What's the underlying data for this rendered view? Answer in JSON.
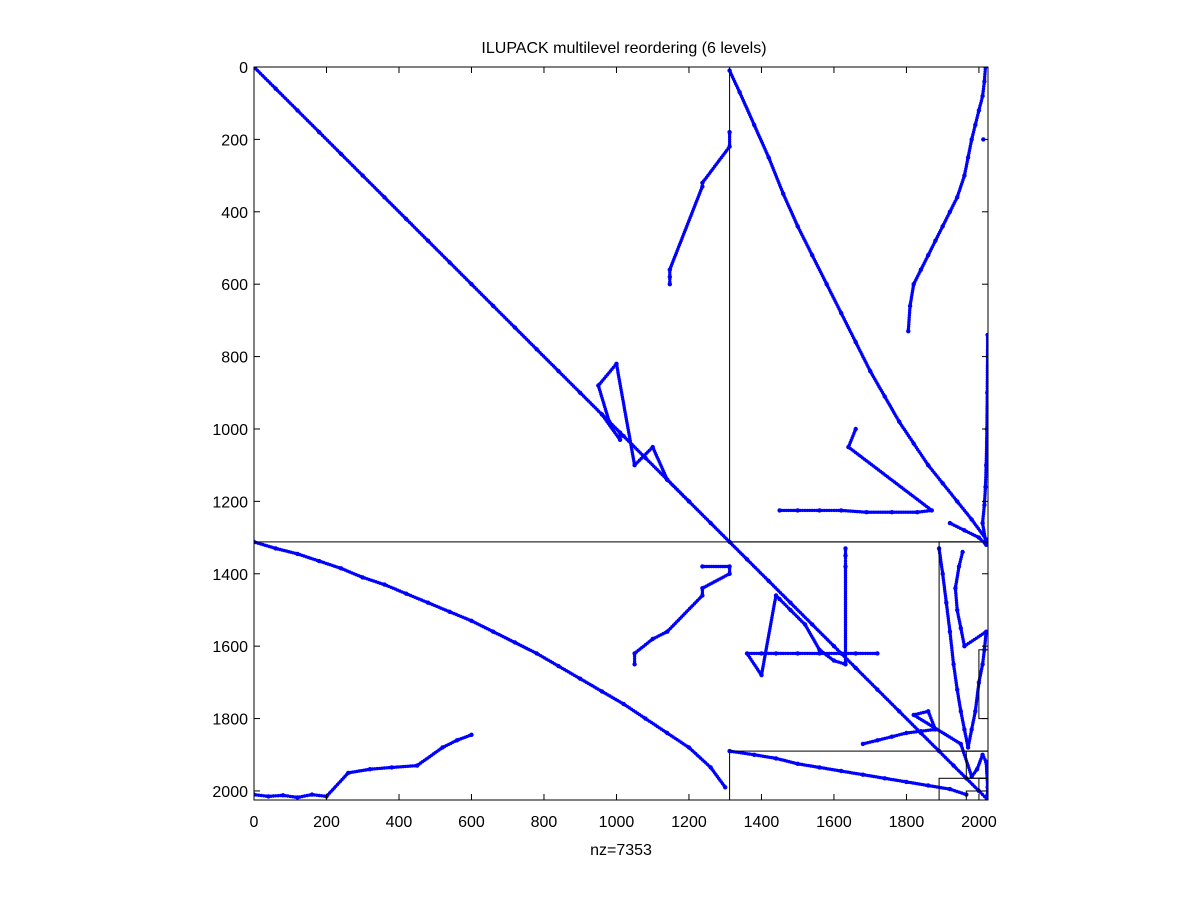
{
  "chart_data": {
    "type": "scatter",
    "title": "ILUPACK multilevel reordering (6 levels)",
    "xlabel": "nz=7353",
    "ylabel": "",
    "xlim": [
      0,
      2025
    ],
    "ylim": [
      2025,
      0
    ],
    "y_axis_reversed": true,
    "grid": false,
    "legend": "none",
    "x_ticks": [
      "0",
      "200",
      "400",
      "600",
      "800",
      "1000",
      "1200",
      "1400",
      "1600",
      "1800",
      "2000"
    ],
    "y_ticks": [
      "0",
      "200",
      "400",
      "600",
      "800",
      "1000",
      "1200",
      "1400",
      "1600",
      "1800",
      "2000"
    ],
    "marker_color": "#0000ff",
    "nonzeros": 7353,
    "level_boundaries": [
      1312,
      1890,
      1965,
      2000
    ],
    "block_rectangles": [
      {
        "x0": 1312,
        "x1": 2025,
        "y0": 0,
        "y1": 1312
      },
      {
        "x0": 0,
        "x1": 2025,
        "y0": 1312,
        "y1": 2025
      },
      {
        "x0": 1890,
        "x1": 2025,
        "y0": 1312,
        "y1": 1890
      },
      {
        "x0": 1312,
        "x1": 2025,
        "y0": 1890,
        "y1": 2025
      },
      {
        "x0": 1965,
        "x1": 2025,
        "y0": 1890,
        "y1": 1965
      },
      {
        "x0": 1890,
        "x1": 2025,
        "y0": 1965,
        "y1": 2025
      },
      {
        "x0": 2000,
        "x1": 2025,
        "y0": 1965,
        "y1": 2000
      },
      {
        "x0": 1965,
        "x1": 2025,
        "y0": 2000,
        "y1": 2025
      },
      {
        "x0": 2000,
        "x1": 2025,
        "y0": 1610,
        "y1": 1800
      }
    ],
    "series": [
      {
        "points": [
          [
            0,
            0
          ],
          [
            60,
            60
          ],
          [
            120,
            120
          ],
          [
            180,
            180
          ],
          [
            240,
            240
          ],
          [
            300,
            300
          ],
          [
            360,
            360
          ],
          [
            420,
            420
          ],
          [
            480,
            480
          ],
          [
            540,
            540
          ],
          [
            600,
            600
          ],
          [
            660,
            660
          ],
          [
            720,
            720
          ],
          [
            780,
            780
          ],
          [
            840,
            840
          ],
          [
            900,
            900
          ],
          [
            960,
            960
          ],
          [
            1020,
            1020
          ],
          [
            1080,
            1080
          ],
          [
            1140,
            1140
          ],
          [
            1200,
            1200
          ],
          [
            1260,
            1260
          ],
          [
            1312,
            1312
          ],
          [
            1360,
            1360
          ],
          [
            1420,
            1420
          ],
          [
            1480,
            1480
          ],
          [
            1540,
            1540
          ],
          [
            1600,
            1600
          ],
          [
            1660,
            1660
          ],
          [
            1720,
            1720
          ],
          [
            1780,
            1780
          ],
          [
            1840,
            1840
          ],
          [
            1890,
            1890
          ],
          [
            1930,
            1930
          ],
          [
            1965,
            1965
          ],
          [
            2000,
            2000
          ],
          [
            2025,
            2025
          ]
        ]
      },
      {
        "points": [
          [
            1312,
            10
          ],
          [
            1340,
            70
          ],
          [
            1380,
            160
          ],
          [
            1420,
            250
          ],
          [
            1460,
            350
          ],
          [
            1500,
            440
          ],
          [
            1540,
            520
          ],
          [
            1580,
            600
          ],
          [
            1620,
            680
          ],
          [
            1660,
            760
          ],
          [
            1700,
            840
          ],
          [
            1740,
            910
          ],
          [
            1780,
            980
          ],
          [
            1820,
            1040
          ],
          [
            1860,
            1100
          ],
          [
            1900,
            1150
          ],
          [
            1940,
            1200
          ],
          [
            1980,
            1250
          ],
          [
            2020,
            1305
          ]
        ]
      },
      {
        "points": [
          [
            1805,
            730
          ],
          [
            1810,
            660
          ],
          [
            1820,
            600
          ],
          [
            1840,
            560
          ],
          [
            1860,
            520
          ],
          [
            1880,
            480
          ],
          [
            1900,
            440
          ],
          [
            1920,
            400
          ],
          [
            1940,
            360
          ],
          [
            1960,
            300
          ],
          [
            1970,
            250
          ],
          [
            1980,
            200
          ],
          [
            1990,
            160
          ],
          [
            2000,
            120
          ],
          [
            2010,
            80
          ],
          [
            2015,
            40
          ],
          [
            2018,
            0
          ]
        ]
      },
      {
        "points": [
          [
            0,
            1312
          ],
          [
            60,
            1330
          ],
          [
            120,
            1345
          ],
          [
            180,
            1365
          ],
          [
            240,
            1385
          ],
          [
            300,
            1410
          ],
          [
            360,
            1430
          ],
          [
            420,
            1455
          ],
          [
            480,
            1480
          ],
          [
            540,
            1505
          ],
          [
            600,
            1530
          ],
          [
            660,
            1560
          ],
          [
            720,
            1590
          ],
          [
            780,
            1620
          ],
          [
            840,
            1655
          ],
          [
            900,
            1690
          ],
          [
            960,
            1725
          ],
          [
            1020,
            1760
          ],
          [
            1080,
            1800
          ],
          [
            1140,
            1840
          ],
          [
            1200,
            1880
          ],
          [
            1260,
            1935
          ],
          [
            1300,
            1990
          ]
        ]
      },
      {
        "points": [
          [
            1312,
            1890
          ],
          [
            1380,
            1900
          ],
          [
            1440,
            1910
          ],
          [
            1500,
            1925
          ],
          [
            1560,
            1935
          ],
          [
            1620,
            1945
          ],
          [
            1680,
            1955
          ],
          [
            1740,
            1965
          ],
          [
            1800,
            1975
          ],
          [
            1860,
            1985
          ],
          [
            1920,
            1995
          ],
          [
            1965,
            2010
          ]
        ]
      },
      {
        "points": [
          [
            0,
            2010
          ],
          [
            40,
            2015
          ],
          [
            80,
            2012
          ],
          [
            120,
            2018
          ],
          [
            160,
            2010
          ],
          [
            200,
            2015
          ],
          [
            260,
            1950
          ],
          [
            320,
            1940
          ],
          [
            380,
            1935
          ],
          [
            450,
            1930
          ],
          [
            520,
            1880
          ],
          [
            560,
            1860
          ],
          [
            600,
            1845
          ]
        ]
      },
      {
        "points": [
          [
            1312,
            180
          ],
          [
            1312,
            220
          ],
          [
            1237,
            320
          ],
          [
            1237,
            330
          ],
          [
            1147,
            560
          ],
          [
            1147,
            580
          ],
          [
            1147,
            600
          ],
          [
            1237,
            1380
          ],
          [
            1312,
            1380
          ],
          [
            1312,
            1400
          ],
          [
            1237,
            1440
          ],
          [
            1237,
            1460
          ],
          [
            1140,
            1560
          ],
          [
            1100,
            1580
          ],
          [
            1050,
            1620
          ],
          [
            1050,
            1650
          ],
          [
            1010,
            1010
          ],
          [
            1010,
            1030
          ],
          [
            960,
            960
          ],
          [
            980,
            980
          ],
          [
            950,
            880
          ],
          [
            1000,
            820
          ],
          [
            1050,
            1100
          ],
          [
            1100,
            1050
          ],
          [
            1140,
            1140
          ],
          [
            1200,
            1200
          ]
        ]
      },
      {
        "points": [
          [
            1632,
            1330
          ],
          [
            1632,
            1350
          ],
          [
            1632,
            1380
          ],
          [
            1632,
            1650
          ],
          [
            1600,
            1640
          ],
          [
            1560,
            1610
          ],
          [
            1520,
            1540
          ],
          [
            1480,
            1500
          ],
          [
            1450,
            1470
          ],
          [
            1440,
            1460
          ],
          [
            1400,
            1680
          ],
          [
            1360,
            1620
          ],
          [
            1400,
            1620
          ],
          [
            1440,
            1620
          ],
          [
            1500,
            1620
          ],
          [
            1560,
            1620
          ],
          [
            1620,
            1620
          ],
          [
            1660,
            1620
          ],
          [
            1720,
            1620
          ]
        ]
      },
      {
        "points": [
          [
            1890,
            1330
          ],
          [
            1900,
            1400
          ],
          [
            1910,
            1480
          ],
          [
            1920,
            1560
          ],
          [
            1930,
            1650
          ],
          [
            1940,
            1720
          ],
          [
            1950,
            1780
          ],
          [
            1960,
            1830
          ],
          [
            1970,
            1880
          ],
          [
            1980,
            1830
          ],
          [
            1990,
            1780
          ],
          [
            2000,
            1700
          ],
          [
            2010,
            1650
          ],
          [
            2015,
            1610
          ],
          [
            2020,
            1560
          ],
          [
            1960,
            1600
          ],
          [
            1950,
            1550
          ],
          [
            1940,
            1500
          ],
          [
            1935,
            1440
          ],
          [
            1945,
            1380
          ],
          [
            1955,
            1340
          ]
        ]
      },
      {
        "points": [
          [
            1450,
            1225
          ],
          [
            1500,
            1225
          ],
          [
            1560,
            1225
          ],
          [
            1620,
            1225
          ],
          [
            1690,
            1230
          ],
          [
            1760,
            1230
          ],
          [
            1830,
            1230
          ],
          [
            1870,
            1225
          ],
          [
            1640,
            1050
          ],
          [
            1660,
            1000
          ],
          [
            1920,
            1260
          ],
          [
            1960,
            1280
          ],
          [
            2000,
            1300
          ],
          [
            2020,
            1320
          ],
          [
            2010,
            1260
          ],
          [
            2015,
            1210
          ],
          [
            2018,
            1160
          ],
          [
            2020,
            1100
          ],
          [
            2022,
            1000
          ],
          [
            2023,
            900
          ],
          [
            2024,
            740
          ],
          [
            2012,
            200
          ]
        ]
      },
      {
        "points": [
          [
            1680,
            1870
          ],
          [
            1720,
            1860
          ],
          [
            1760,
            1850
          ],
          [
            1800,
            1840
          ],
          [
            1840,
            1835
          ],
          [
            1880,
            1830
          ],
          [
            1860,
            1780
          ],
          [
            1820,
            1790
          ],
          [
            1950,
            1870
          ],
          [
            1980,
            1960
          ],
          [
            1995,
            1940
          ],
          [
            2010,
            1900
          ],
          [
            2020,
            1920
          ],
          [
            2024,
            1990
          ],
          [
            2024,
            2010
          ],
          [
            2024,
            2020
          ]
        ]
      }
    ]
  }
}
